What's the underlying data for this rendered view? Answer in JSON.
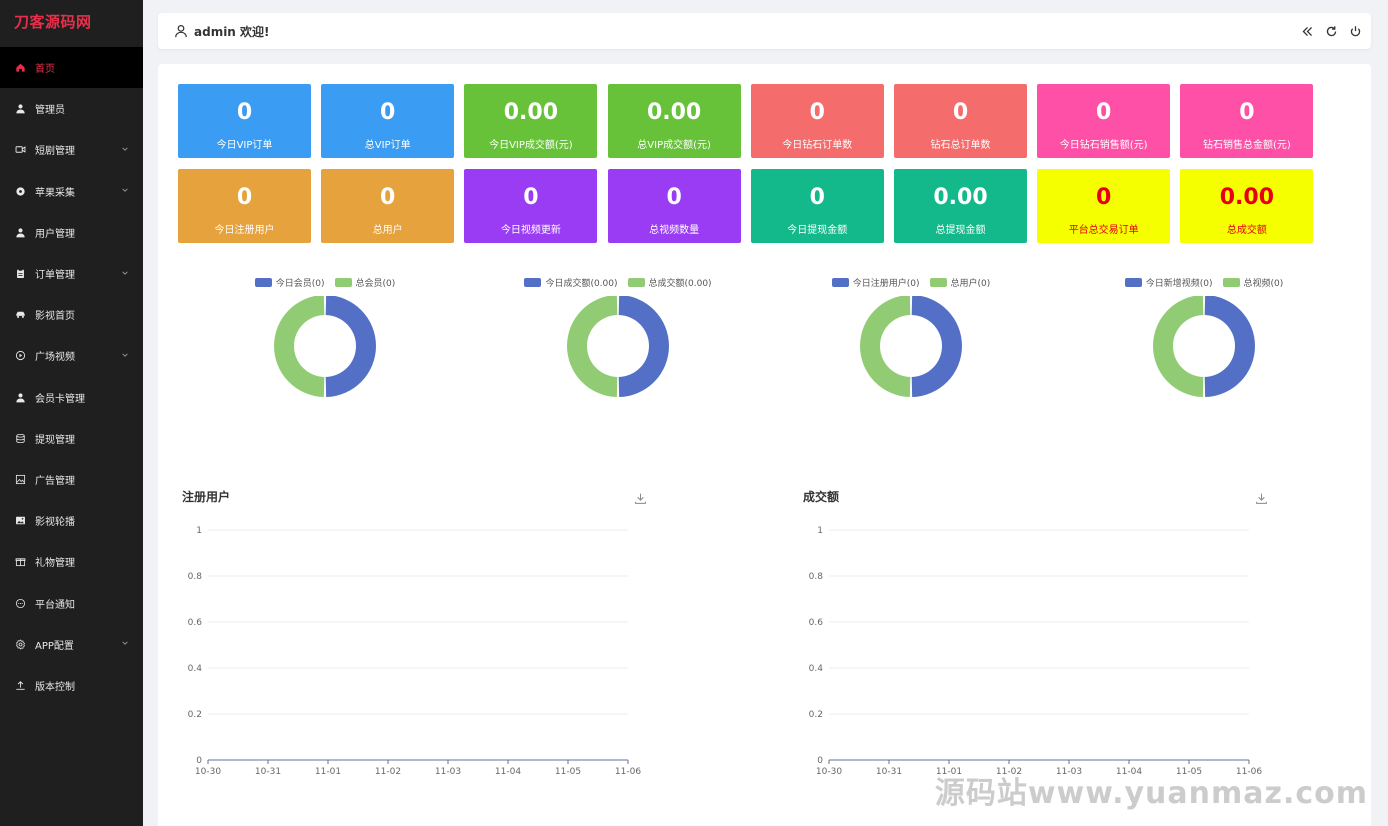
{
  "logo": "刀客源码网",
  "sidebar": {
    "items": [
      {
        "label": "首页",
        "icon": "home-icon",
        "active": true,
        "chevron": false
      },
      {
        "label": "管理员",
        "icon": "user-icon",
        "active": false,
        "chevron": false
      },
      {
        "label": "短剧管理",
        "icon": "video-icon",
        "active": false,
        "chevron": true
      },
      {
        "label": "苹果采集",
        "icon": "aperture-icon",
        "active": false,
        "chevron": true
      },
      {
        "label": "用户管理",
        "icon": "user-icon",
        "active": false,
        "chevron": false
      },
      {
        "label": "订单管理",
        "icon": "clipboard-icon",
        "active": false,
        "chevron": true
      },
      {
        "label": "影视首页",
        "icon": "car-icon",
        "active": false,
        "chevron": false
      },
      {
        "label": "广场视频",
        "icon": "play-circle-icon",
        "active": false,
        "chevron": true
      },
      {
        "label": "会员卡管理",
        "icon": "user-icon",
        "active": false,
        "chevron": false
      },
      {
        "label": "提现管理",
        "icon": "database-icon",
        "active": false,
        "chevron": false
      },
      {
        "label": "广告管理",
        "icon": "picture-icon",
        "active": false,
        "chevron": false
      },
      {
        "label": "影视轮播",
        "icon": "image-icon",
        "active": false,
        "chevron": false
      },
      {
        "label": "礼物管理",
        "icon": "gift-icon",
        "active": false,
        "chevron": false
      },
      {
        "label": "平台通知",
        "icon": "chat-icon",
        "active": false,
        "chevron": false
      },
      {
        "label": "APP配置",
        "icon": "gear-icon",
        "active": false,
        "chevron": true
      },
      {
        "label": "版本控制",
        "icon": "upload-icon",
        "active": false,
        "chevron": false
      }
    ]
  },
  "header": {
    "welcome": "admin 欢迎!",
    "tools": [
      "collapse-icon",
      "refresh-icon",
      "power-icon"
    ]
  },
  "stats": [
    {
      "value": "0",
      "label": "今日VIP订单",
      "bg": "#3a9cf2",
      "fg": "#ffffff"
    },
    {
      "value": "0",
      "label": "总VIP订单",
      "bg": "#3a9cf2",
      "fg": "#ffffff"
    },
    {
      "value": "0.00",
      "label": "今日VIP成交额(元)",
      "bg": "#67c23a",
      "fg": "#ffffff"
    },
    {
      "value": "0.00",
      "label": "总VIP成交额(元)",
      "bg": "#67c23a",
      "fg": "#ffffff"
    },
    {
      "value": "0",
      "label": "今日钻石订单数",
      "bg": "#f56c6c",
      "fg": "#ffffff"
    },
    {
      "value": "0",
      "label": "钻石总订单数",
      "bg": "#f56c6c",
      "fg": "#ffffff"
    },
    {
      "value": "0",
      "label": "今日钻石销售额(元)",
      "bg": "#ff50a8",
      "fg": "#ffffff"
    },
    {
      "value": "0",
      "label": "钻石销售总金额(元)",
      "bg": "#ff50a8",
      "fg": "#ffffff"
    },
    {
      "value": "0",
      "label": "今日注册用户",
      "bg": "#e6a23c",
      "fg": "#ffffff"
    },
    {
      "value": "0",
      "label": "总用户",
      "bg": "#e6a23c",
      "fg": "#ffffff"
    },
    {
      "value": "0",
      "label": "今日视频更新",
      "bg": "#9b3cf5",
      "fg": "#ffffff"
    },
    {
      "value": "0",
      "label": "总视频数量",
      "bg": "#9b3cf5",
      "fg": "#ffffff"
    },
    {
      "value": "0",
      "label": "今日提现金额",
      "bg": "#13b98a",
      "fg": "#ffffff"
    },
    {
      "value": "0.00",
      "label": "总提现金额",
      "bg": "#13b98a",
      "fg": "#ffffff"
    },
    {
      "value": "0",
      "label": "平台总交易订单",
      "bg": "#f5ff00",
      "fg": "#e60012"
    },
    {
      "value": "0.00",
      "label": "总成交额",
      "bg": "#f5ff00",
      "fg": "#e60012"
    }
  ],
  "chart_data": [
    {
      "type": "pie",
      "donut": true,
      "labels": [
        "今日会员(0)",
        "总会员(0)"
      ],
      "values": [
        0,
        0
      ],
      "colors": [
        "#5470c6",
        "#91cc75"
      ]
    },
    {
      "type": "pie",
      "donut": true,
      "labels": [
        "今日成交额(0.00)",
        "总成交额(0.00)"
      ],
      "values": [
        0,
        0
      ],
      "colors": [
        "#5470c6",
        "#91cc75"
      ]
    },
    {
      "type": "pie",
      "donut": true,
      "labels": [
        "今日注册用户(0)",
        "总用户(0)"
      ],
      "values": [
        0,
        0
      ],
      "colors": [
        "#5470c6",
        "#91cc75"
      ]
    },
    {
      "type": "pie",
      "donut": true,
      "labels": [
        "今日新增视频(0)",
        "总视频(0)"
      ],
      "values": [
        0,
        0
      ],
      "colors": [
        "#5470c6",
        "#91cc75"
      ]
    },
    {
      "type": "line",
      "title": "注册用户",
      "categories": [
        "10-30",
        "10-31",
        "11-01",
        "11-02",
        "11-03",
        "11-04",
        "11-05",
        "11-06"
      ],
      "ylim": [
        0,
        1
      ],
      "yticks": [
        "0",
        "0.2",
        "0.4",
        "0.6",
        "0.8",
        "1"
      ],
      "series": [
        {
          "values": [
            0,
            0,
            0,
            0,
            0,
            0,
            0,
            0
          ]
        }
      ],
      "grid": true
    },
    {
      "type": "line",
      "title": "成交额",
      "categories": [
        "10-30",
        "10-31",
        "11-01",
        "11-02",
        "11-03",
        "11-04",
        "11-05",
        "11-06"
      ],
      "ylim": [
        0,
        1
      ],
      "yticks": [
        "0",
        "0.2",
        "0.4",
        "0.6",
        "0.8",
        "1"
      ],
      "series": [
        {
          "values": [
            0,
            0,
            0,
            0,
            0,
            0,
            0,
            0
          ]
        }
      ],
      "grid": true
    }
  ],
  "watermark": "源码站www.yuanmaz.com"
}
